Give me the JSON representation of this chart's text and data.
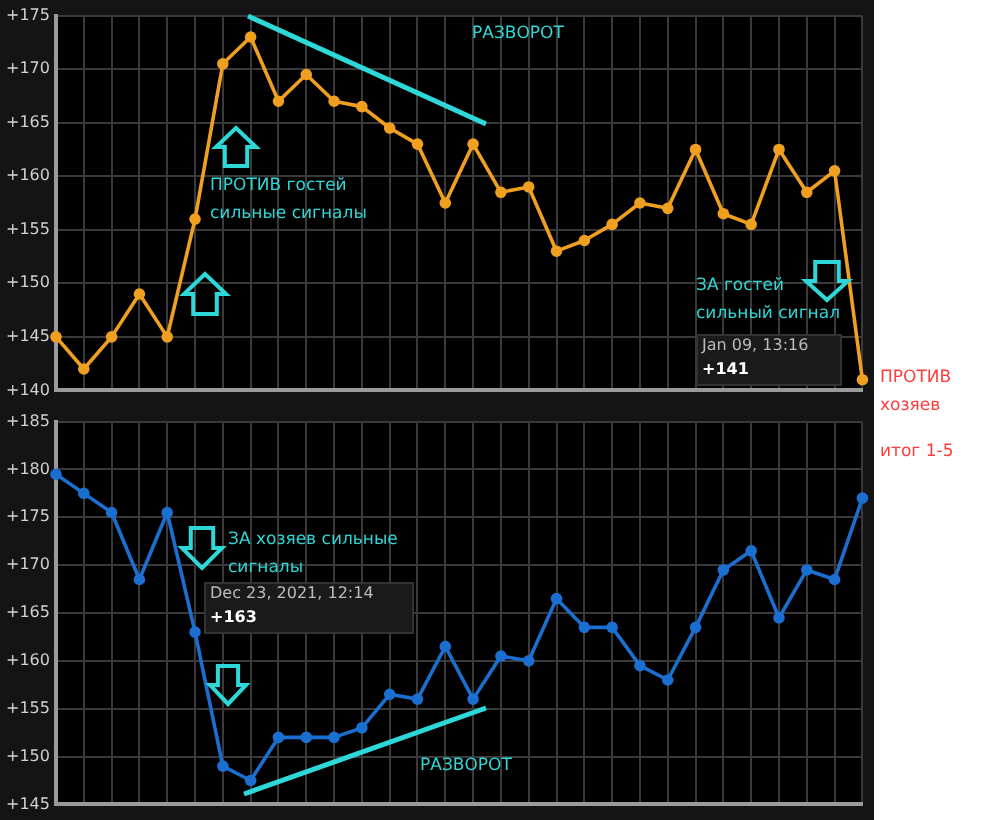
{
  "chart_data": [
    {
      "type": "line",
      "categories": [
        null,
        null,
        null,
        null,
        null,
        null,
        null,
        null,
        null,
        null,
        null,
        null,
        null,
        null,
        null,
        null,
        null,
        null,
        null,
        null,
        null,
        null,
        null,
        null,
        null,
        null,
        null,
        null,
        null,
        null
      ],
      "series": [
        {
          "color": "#f0a020",
          "values": [
            145,
            142,
            145,
            149,
            145,
            156,
            170.5,
            173,
            167,
            169.5,
            167,
            166.5,
            164.5,
            163,
            157.5,
            163,
            158.5,
            159,
            153,
            154,
            155.5,
            157.5,
            157,
            162.5,
            156.5,
            155.5,
            162.5,
            158.5,
            160.5,
            141
          ]
        }
      ],
      "ylim": [
        140,
        175
      ],
      "yticks": [
        {
          "value": 140,
          "label": "+140"
        },
        {
          "value": 145,
          "label": "+145"
        },
        {
          "value": 150,
          "label": "+150"
        },
        {
          "value": 155,
          "label": "+155"
        },
        {
          "value": 160,
          "label": "+160"
        },
        {
          "value": 165,
          "label": "+165"
        },
        {
          "value": 170,
          "label": "+170"
        },
        {
          "value": 175,
          "label": "+175"
        }
      ],
      "grid": true,
      "marker": "circle",
      "line_style": "solid",
      "tick_labels": "y",
      "annotations": [
        "РАЗВОРОТ",
        "ПРОТИВ гостей сильные сигналы",
        "ЗА гостей сильный сигнал",
        "Jan 09, 13:16",
        "+141",
        "ПРОТИВ хозяев"
      ]
    },
    {
      "type": "line",
      "categories": [
        null,
        null,
        null,
        null,
        null,
        null,
        null,
        null,
        null,
        null,
        null,
        null,
        null,
        null,
        null,
        null,
        null,
        null,
        null,
        null,
        null,
        null,
        null,
        null,
        null,
        null,
        null,
        null,
        null,
        null
      ],
      "series": [
        {
          "color": "#1a6fd0",
          "values": [
            179.5,
            177.5,
            175.5,
            168.5,
            175.5,
            163,
            149,
            147.5,
            152,
            152,
            152,
            153,
            156.5,
            156,
            161.5,
            156,
            160.5,
            160,
            166.5,
            163.5,
            163.5,
            159.5,
            158,
            163.5,
            169.5,
            171.5,
            164.5,
            169.5,
            168.5,
            177
          ]
        }
      ],
      "ylim": [
        145,
        185
      ],
      "yticks": [
        {
          "value": 145,
          "label": "+145"
        },
        {
          "value": 150,
          "label": "+150"
        },
        {
          "value": 155,
          "label": "+155"
        },
        {
          "value": 160,
          "label": "+160"
        },
        {
          "value": 165,
          "label": "+165"
        },
        {
          "value": 170,
          "label": "+170"
        },
        {
          "value": 175,
          "label": "+175"
        },
        {
          "value": 180,
          "label": "+180"
        },
        {
          "value": 185,
          "label": "+185"
        }
      ],
      "grid": true,
      "marker": "circle",
      "line_style": "solid",
      "tick_labels": "y",
      "annotations": [
        "ЗА хозяев сильные сигналы",
        "Dec 23, 2021, 12:14",
        "+163",
        "РАЗВОРОТ",
        "итог 1-5"
      ]
    }
  ]
}
